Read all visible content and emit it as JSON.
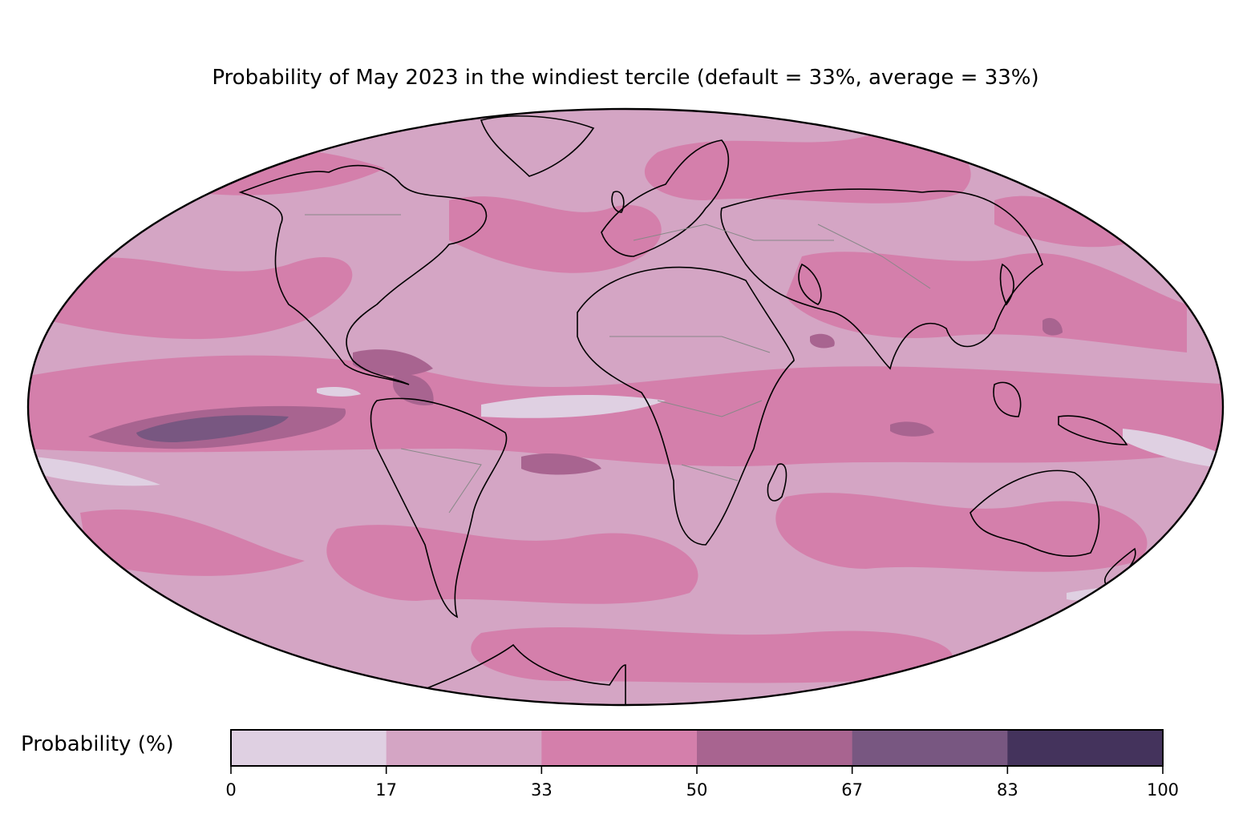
{
  "title": "Probability of May 2023 in the windiest tercile (default = 33%, average = 33%)",
  "projection": "mollweide",
  "colorbar": {
    "label": "Probability (%)",
    "ticks": [
      "0",
      "17",
      "33",
      "50",
      "67",
      "83",
      "100"
    ],
    "bin_colors": [
      "#dfd0e2",
      "#d4a5c4",
      "#d47fab",
      "#a86490",
      "#785781",
      "#44335c"
    ]
  },
  "colors": {
    "background_fill": "#d4a5c4",
    "coastline": "#000000",
    "borders": "#888888",
    "frame": "#000000"
  }
}
